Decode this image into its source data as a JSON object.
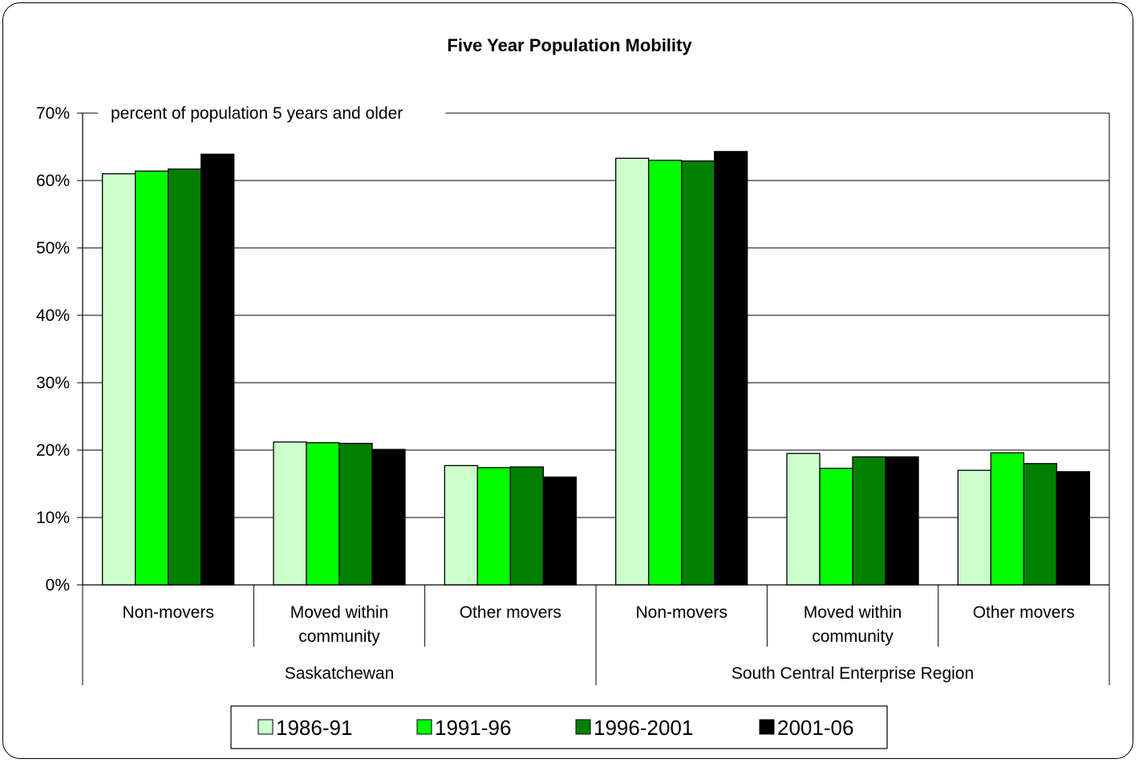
{
  "chart_data": {
    "type": "bar",
    "title": "Five Year Population Mobility",
    "annotation": "percent of population 5 years and older",
    "y_ticks": [
      "0%",
      "10%",
      "20%",
      "30%",
      "40%",
      "50%",
      "60%",
      "70%"
    ],
    "ylim": [
      0,
      70
    ],
    "grid": true,
    "legend_position": "bottom",
    "groups": [
      {
        "label": "Saskatchewan",
        "categories": [
          {
            "label": [
              "Non-movers"
            ]
          },
          {
            "label": [
              "Moved within",
              "community"
            ]
          },
          {
            "label": [
              "Other movers"
            ]
          }
        ]
      },
      {
        "label": "South Central Enterprise Region",
        "categories": [
          {
            "label": [
              "Non-movers"
            ]
          },
          {
            "label": [
              "Moved within",
              "community"
            ]
          },
          {
            "label": [
              "Other movers"
            ]
          }
        ]
      }
    ],
    "series": [
      {
        "name": "1986-91",
        "color": "#ccffcc",
        "values": [
          61.0,
          21.2,
          17.7,
          63.3,
          19.5,
          17.0
        ]
      },
      {
        "name": "1991-96",
        "color": "#00ff00",
        "values": [
          61.4,
          21.1,
          17.4,
          63.0,
          17.3,
          19.6
        ]
      },
      {
        "name": "1996-2001",
        "color": "#008000",
        "values": [
          61.7,
          21.0,
          17.5,
          62.9,
          19.0,
          18.0
        ]
      },
      {
        "name": "2001-06",
        "color": "#000000",
        "values": [
          63.9,
          20.1,
          16.0,
          64.3,
          19.0,
          16.8
        ]
      }
    ]
  }
}
